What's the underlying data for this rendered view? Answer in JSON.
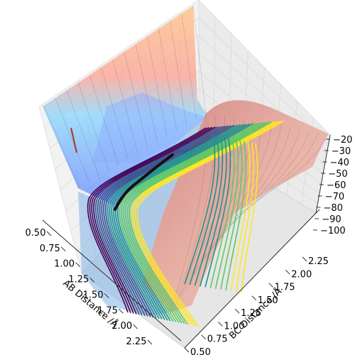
{
  "chart_data": {
    "type": "surface-3d",
    "title": "",
    "xlabel": "AB Distance /Å",
    "ylabel": "BC Distance /Å",
    "zlabel": "",
    "x_ticks": [
      "0.50",
      "0.75",
      "1.00",
      "1.25",
      "1.50",
      "1.75",
      "2.00",
      "2.25"
    ],
    "y_ticks": [
      "0.50",
      "0.75",
      "1.00",
      "1.25",
      "1.50",
      "1.75",
      "2.00",
      "2.25"
    ],
    "z_ticks": [
      "−20",
      "−30",
      "−40",
      "−50",
      "−60",
      "−70",
      "−80",
      "−90",
      "−100"
    ],
    "xlim": [
      0.5,
      2.4
    ],
    "ylim": [
      0.5,
      2.4
    ],
    "zlim": [
      -100,
      -20
    ],
    "surface_colors": [
      "#ff8080",
      "#ffd27f",
      "#ffff99",
      "#9fffb0",
      "#7fdcff",
      "#6f8fff"
    ],
    "contour_colormap": [
      "#440154",
      "#3b528b",
      "#21918c",
      "#5ec962",
      "#fde725"
    ],
    "trajectory_color": "#1a0d12",
    "grid": true
  }
}
